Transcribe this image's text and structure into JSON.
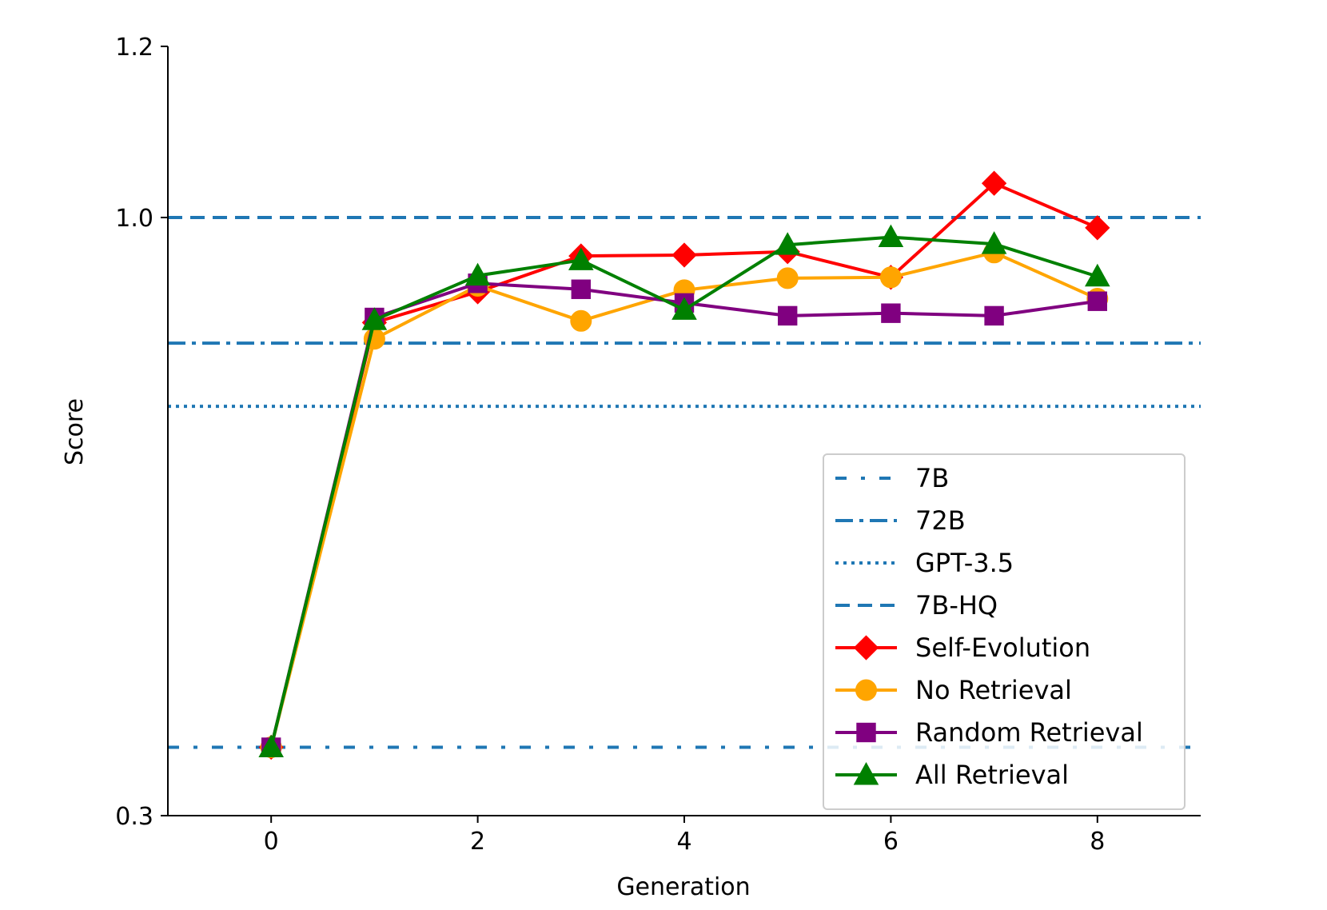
{
  "chart_data": {
    "type": "line",
    "title": "",
    "xlabel": "Generation",
    "ylabel": "Score",
    "xlim": [
      -1,
      9
    ],
    "ylim": [
      0.3,
      1.2
    ],
    "xticks": [
      "0",
      "2",
      "4",
      "6",
      "8"
    ],
    "yticks": [
      "0.3",
      "1.0",
      "1.2"
    ],
    "y_axis_note": "non-linear: 0.3 tick at bottom, 1.0 and 1.2 in upper region",
    "grid": false,
    "legend_position": "lower-right",
    "reference_lines": [
      {
        "name": "7B",
        "value": 0.38,
        "style": "dashdot-sparse",
        "color": "#1f77b4"
      },
      {
        "name": "72B",
        "value": 0.853,
        "style": "dashdot",
        "color": "#1f77b4"
      },
      {
        "name": "GPT-3.5",
        "value": 0.779,
        "style": "dotted",
        "color": "#1f77b4"
      },
      {
        "name": "7B-HQ",
        "value": 1.0,
        "style": "dashed",
        "color": "#1f77b4"
      }
    ],
    "x": [
      0,
      1,
      2,
      3,
      4,
      5,
      6,
      7,
      8
    ],
    "series": [
      {
        "name": "Self-Evolution",
        "color": "#ff0000",
        "marker": "diamond",
        "values": [
          0.38,
          0.877,
          0.913,
          0.955,
          0.956,
          0.96,
          0.93,
          1.04,
          0.988
        ]
      },
      {
        "name": "No Retrieval",
        "color": "#ffa500",
        "marker": "circle",
        "values": [
          0.38,
          0.858,
          0.92,
          0.879,
          0.915,
          0.929,
          0.93,
          0.959,
          0.905
        ]
      },
      {
        "name": "Random Retrieval",
        "color": "#800080",
        "marker": "square",
        "values": [
          0.38,
          0.883,
          0.923,
          0.916,
          0.9,
          0.885,
          0.888,
          0.885,
          0.902
        ]
      },
      {
        "name": "All Retrieval",
        "color": "#008000",
        "marker": "triangle",
        "values": [
          0.38,
          0.88,
          0.932,
          0.95,
          0.892,
          0.968,
          0.977,
          0.969,
          0.931
        ]
      }
    ]
  }
}
